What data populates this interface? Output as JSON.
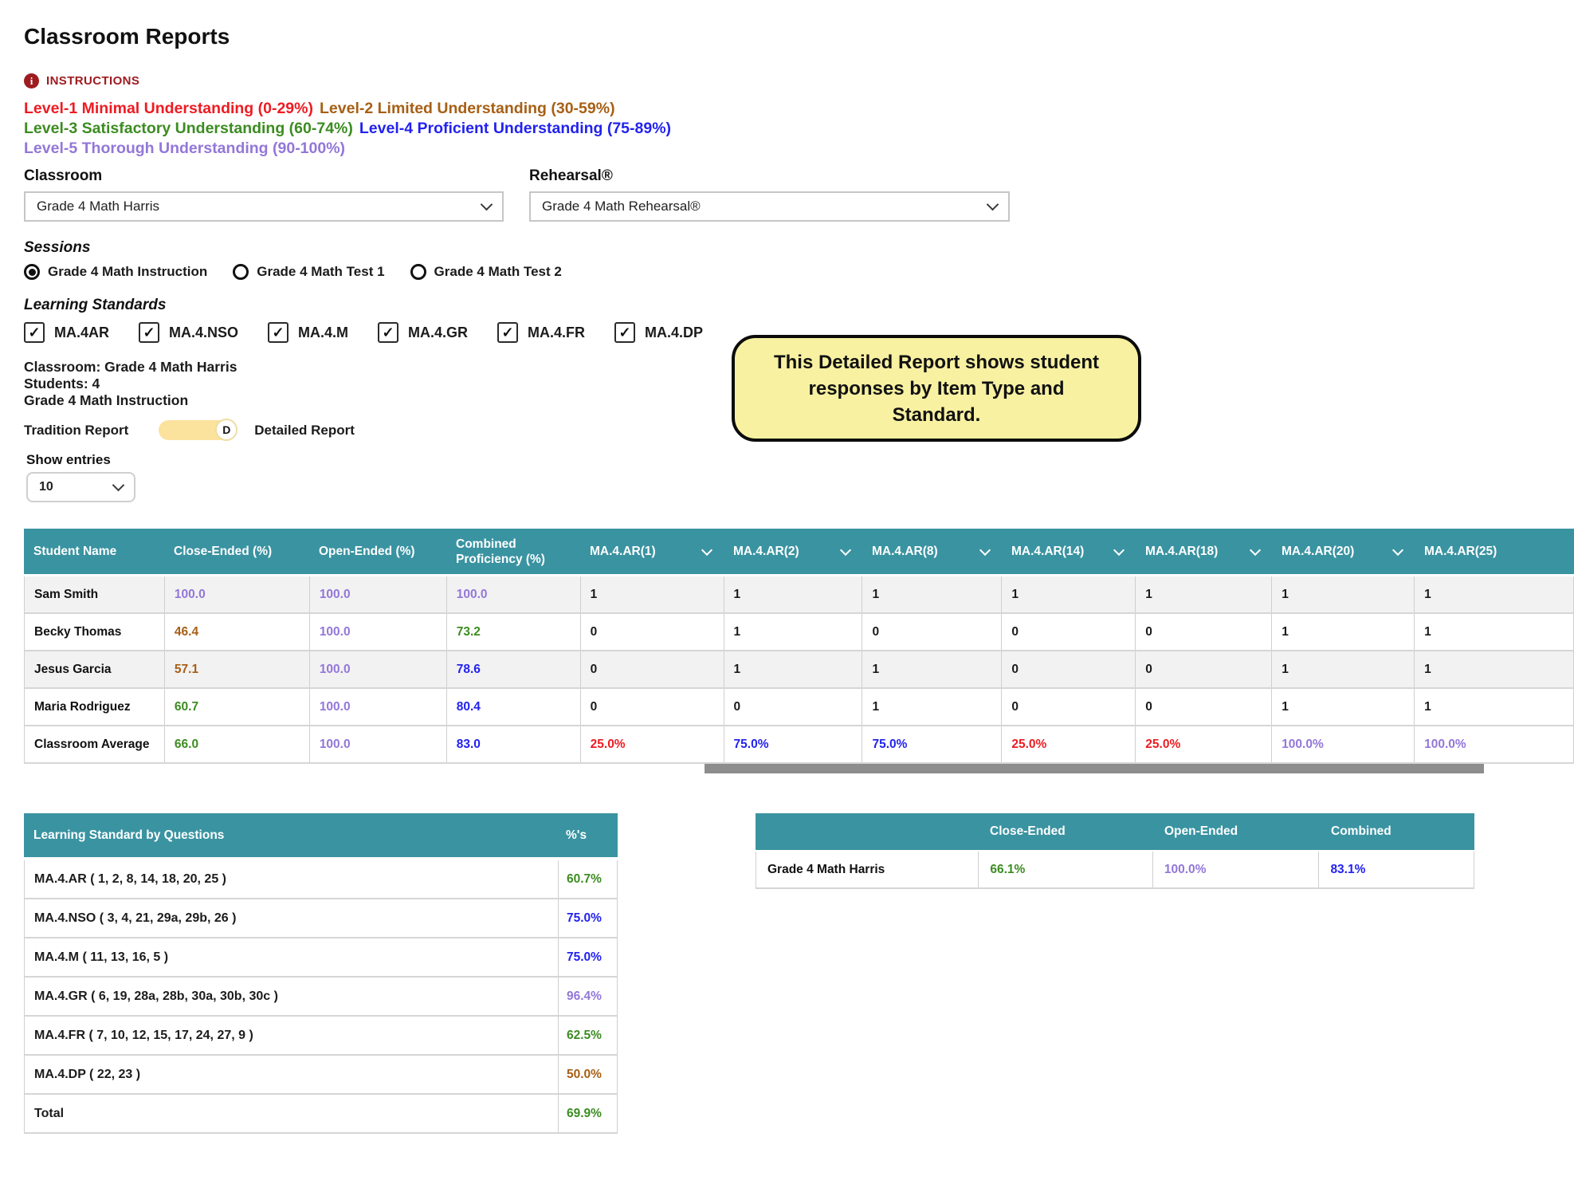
{
  "page": {
    "title": "Classroom Reports"
  },
  "icons": {
    "info": "i",
    "check": "✓"
  },
  "theme": {
    "header_teal": "#3a93a1",
    "level1_red": "#ee1b22",
    "level2_brown": "#a75f15",
    "level3_green": "#3c8c21",
    "level4_blue": "#2222f0",
    "level5_purple": "#9377d8",
    "instructions_red": "#9e1b20",
    "callout_yellow": "#f8f1a1",
    "toggle_yellow": "#fbe29d",
    "value_black": "#1b1b1b"
  },
  "instructions": {
    "label": "INSTRUCTIONS"
  },
  "legend": {
    "levels": [
      {
        "text": "Level-1 Minimal Understanding (0-29%)",
        "color": "#ee1b22"
      },
      {
        "text": "Level-2 Limited Understanding (30-59%)",
        "color": "#a75f15"
      },
      {
        "text": "Level-3 Satisfactory Understanding (60-74%)",
        "color": "#3c8c21"
      },
      {
        "text": "Level-4 Proficient Understanding (75-89%)",
        "color": "#2222f0"
      },
      {
        "text": "Level-5 Thorough Understanding (90-100%)",
        "color": "#9377d8"
      }
    ]
  },
  "filters": {
    "classroom": {
      "label": "Classroom",
      "value": "Grade 4 Math Harris"
    },
    "rehearsal": {
      "label": "Rehearsal®",
      "value": "Grade 4 Math Rehearsal®"
    },
    "sessions": {
      "label": "Sessions",
      "options": [
        {
          "label": "Grade 4 Math Instruction",
          "selected": true
        },
        {
          "label": "Grade 4 Math Test 1",
          "selected": false
        },
        {
          "label": "Grade 4 Math Test 2",
          "selected": false
        }
      ]
    },
    "learning_standards": {
      "label": "Learning Standards",
      "options": [
        {
          "label": "MA.4AR",
          "checked": true
        },
        {
          "label": "MA.4.NSO",
          "checked": true
        },
        {
          "label": "MA.4.M",
          "checked": true
        },
        {
          "label": "MA.4.GR",
          "checked": true
        },
        {
          "label": "MA.4.FR",
          "checked": true
        },
        {
          "label": "MA.4.DP",
          "checked": true
        }
      ]
    }
  },
  "summary": {
    "lines": [
      "Classroom: Grade 4 Math Harris",
      "Students: 4",
      "Grade 4 Math Instruction"
    ]
  },
  "report_toggle": {
    "left_label": "Tradition Report",
    "right_label": "Detailed Report",
    "knob_letter": "D"
  },
  "callout": {
    "text": "This Detailed Report shows student responses by Item Type and Standard."
  },
  "show_entries": {
    "label": "Show entries",
    "value": "10"
  },
  "students_table": {
    "columns": [
      {
        "label": "Student Name",
        "sortable": false
      },
      {
        "label": "Close-Ended (%)",
        "sortable": false
      },
      {
        "label": "Open-Ended (%)",
        "sortable": false
      },
      {
        "label": "Combined Proficiency (%)",
        "sortable": false
      },
      {
        "label": "MA.4.AR(1)",
        "sortable": true
      },
      {
        "label": "MA.4.AR(2)",
        "sortable": true
      },
      {
        "label": "MA.4.AR(8)",
        "sortable": true
      },
      {
        "label": "MA.4.AR(14)",
        "sortable": true
      },
      {
        "label": "MA.4.AR(18)",
        "sortable": true
      },
      {
        "label": "MA.4.AR(20)",
        "sortable": true
      },
      {
        "label": "MA.4.AR(25)",
        "sortable": true
      }
    ],
    "rows": [
      {
        "name": "Sam Smith",
        "cells": [
          {
            "text": "100.0",
            "color": "#9377d8"
          },
          {
            "text": "100.0",
            "color": "#9377d8"
          },
          {
            "text": "100.0",
            "color": "#9377d8"
          },
          {
            "text": "1",
            "color": "#1b1b1b"
          },
          {
            "text": "1",
            "color": "#1b1b1b"
          },
          {
            "text": "1",
            "color": "#1b1b1b"
          },
          {
            "text": "1",
            "color": "#1b1b1b"
          },
          {
            "text": "1",
            "color": "#1b1b1b"
          },
          {
            "text": "1",
            "color": "#1b1b1b"
          },
          {
            "text": "1",
            "color": "#1b1b1b"
          }
        ]
      },
      {
        "name": "Becky Thomas",
        "cells": [
          {
            "text": "46.4",
            "color": "#a75f15"
          },
          {
            "text": "100.0",
            "color": "#9377d8"
          },
          {
            "text": "73.2",
            "color": "#3c8c21"
          },
          {
            "text": "0",
            "color": "#1b1b1b"
          },
          {
            "text": "1",
            "color": "#1b1b1b"
          },
          {
            "text": "0",
            "color": "#1b1b1b"
          },
          {
            "text": "0",
            "color": "#1b1b1b"
          },
          {
            "text": "0",
            "color": "#1b1b1b"
          },
          {
            "text": "1",
            "color": "#1b1b1b"
          },
          {
            "text": "1",
            "color": "#1b1b1b"
          }
        ]
      },
      {
        "name": "Jesus Garcia",
        "cells": [
          {
            "text": "57.1",
            "color": "#a75f15"
          },
          {
            "text": "100.0",
            "color": "#9377d8"
          },
          {
            "text": "78.6",
            "color": "#2222f0"
          },
          {
            "text": "0",
            "color": "#1b1b1b"
          },
          {
            "text": "1",
            "color": "#1b1b1b"
          },
          {
            "text": "1",
            "color": "#1b1b1b"
          },
          {
            "text": "0",
            "color": "#1b1b1b"
          },
          {
            "text": "0",
            "color": "#1b1b1b"
          },
          {
            "text": "1",
            "color": "#1b1b1b"
          },
          {
            "text": "1",
            "color": "#1b1b1b"
          }
        ]
      },
      {
        "name": "Maria Rodriguez",
        "cells": [
          {
            "text": "60.7",
            "color": "#3c8c21"
          },
          {
            "text": "100.0",
            "color": "#9377d8"
          },
          {
            "text": "80.4",
            "color": "#2222f0"
          },
          {
            "text": "0",
            "color": "#1b1b1b"
          },
          {
            "text": "0",
            "color": "#1b1b1b"
          },
          {
            "text": "1",
            "color": "#1b1b1b"
          },
          {
            "text": "0",
            "color": "#1b1b1b"
          },
          {
            "text": "0",
            "color": "#1b1b1b"
          },
          {
            "text": "1",
            "color": "#1b1b1b"
          },
          {
            "text": "1",
            "color": "#1b1b1b"
          }
        ]
      },
      {
        "name": "Classroom Average",
        "cells": [
          {
            "text": "66.0",
            "color": "#3c8c21"
          },
          {
            "text": "100.0",
            "color": "#9377d8"
          },
          {
            "text": "83.0",
            "color": "#2222f0"
          },
          {
            "text": "25.0%",
            "color": "#ee1b22"
          },
          {
            "text": "75.0%",
            "color": "#2222f0"
          },
          {
            "text": "75.0%",
            "color": "#2222f0"
          },
          {
            "text": "25.0%",
            "color": "#ee1b22"
          },
          {
            "text": "25.0%",
            "color": "#ee1b22"
          },
          {
            "text": "100.0%",
            "color": "#9377d8"
          },
          {
            "text": "100.0%",
            "color": "#9377d8"
          }
        ]
      }
    ]
  },
  "standards_table": {
    "header": {
      "standard": "Learning Standard by Questions",
      "percent": "%'s"
    },
    "rows": [
      {
        "label": "MA.4.AR ( 1, 2, 8, 14, 18, 20, 25 )",
        "value": "60.7%",
        "color": "#3c8c21"
      },
      {
        "label": "MA.4.NSO ( 3, 4, 21, 29a, 29b, 26 )",
        "value": "75.0%",
        "color": "#2222f0"
      },
      {
        "label": "MA.4.M ( 11, 13, 16, 5 )",
        "value": "75.0%",
        "color": "#2222f0"
      },
      {
        "label": "MA.4.GR ( 6, 19, 28a, 28b, 30a, 30b, 30c )",
        "value": "96.4%",
        "color": "#9377d8"
      },
      {
        "label": "MA.4.FR ( 7, 10, 12, 15, 17, 24, 27, 9 )",
        "value": "62.5%",
        "color": "#3c8c21"
      },
      {
        "label": "MA.4.DP ( 22, 23 )",
        "value": "50.0%",
        "color": "#a75f15"
      },
      {
        "label": "Total",
        "value": "69.9%",
        "color": "#3c8c21"
      }
    ]
  },
  "classroom_table": {
    "columns": [
      "",
      "Close-Ended",
      "Open-Ended",
      "Combined"
    ],
    "row": {
      "name": "Grade 4 Math Harris",
      "values": [
        {
          "text": "66.1%",
          "color": "#3c8c21"
        },
        {
          "text": "100.0%",
          "color": "#9377d8"
        },
        {
          "text": "83.1%",
          "color": "#2222f0"
        }
      ]
    }
  }
}
